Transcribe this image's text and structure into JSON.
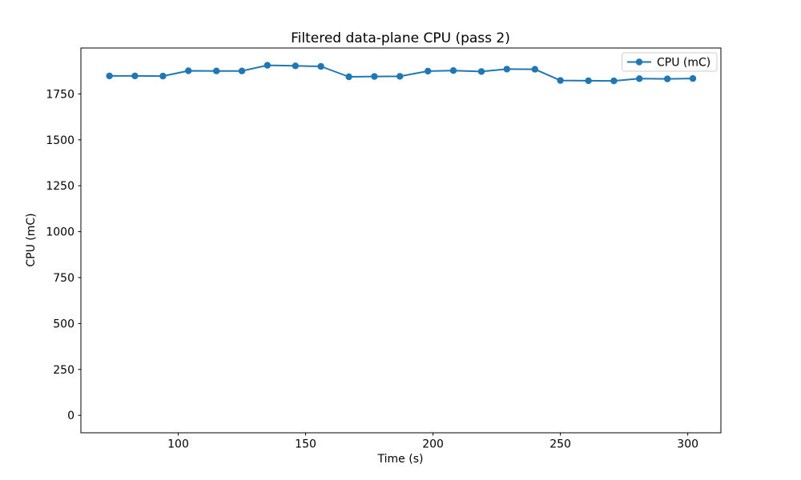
{
  "chart_data": {
    "type": "line",
    "title": "Filtered data-plane CPU (pass 2)",
    "xlabel": "Time (s)",
    "ylabel": "CPU (mC)",
    "legend": {
      "label": "CPU (mC)",
      "position": "upper right"
    },
    "line_color": "#1f77b4",
    "marker": "o",
    "grid": false,
    "x": [
      73,
      83,
      94,
      104,
      115,
      125,
      135,
      146,
      156,
      167,
      177,
      187,
      198,
      208,
      219,
      229,
      240,
      250,
      261,
      271,
      281,
      292,
      302
    ],
    "series": [
      {
        "name": "CPU (mC)",
        "values": [
          1848,
          1848,
          1847,
          1876,
          1875,
          1875,
          1906,
          1903,
          1900,
          1843,
          1845,
          1846,
          1874,
          1877,
          1872,
          1885,
          1884,
          1823,
          1822,
          1821,
          1833,
          1832,
          1834
        ]
      }
    ],
    "xticks": [
      100,
      150,
      200,
      250,
      300
    ],
    "yticks": [
      0,
      250,
      500,
      750,
      1000,
      1250,
      1500,
      1750
    ],
    "xlim": [
      61.8,
      313.0
    ],
    "ylim": [
      -95,
      2000
    ]
  }
}
